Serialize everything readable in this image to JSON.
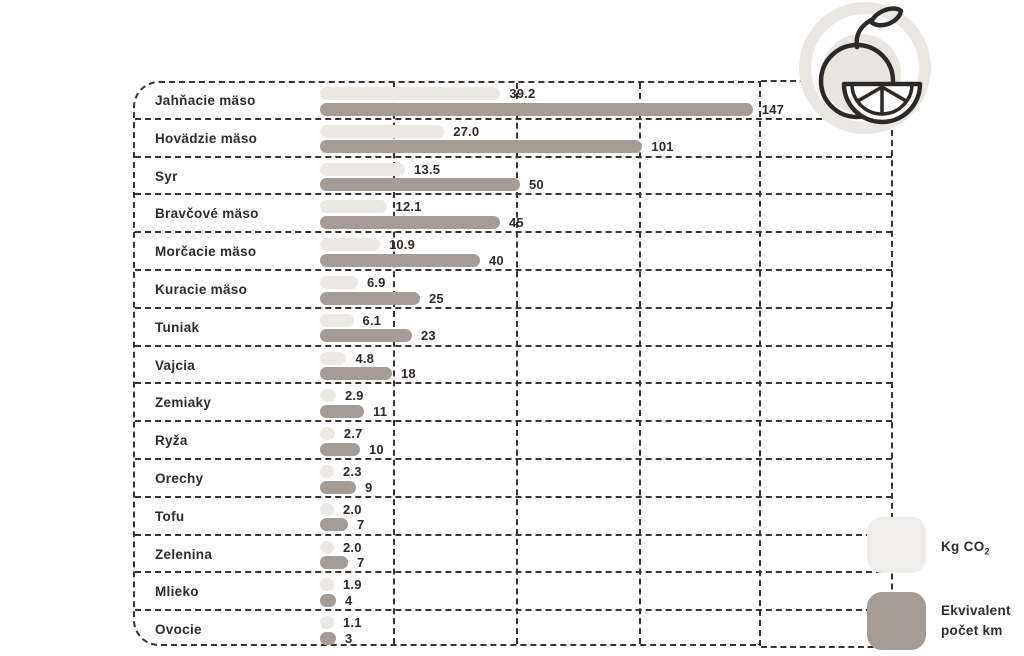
{
  "icon": {
    "name": "orange-fruit-icon"
  },
  "legend": {
    "co2": {
      "label": "Kg CO",
      "subscript": "2",
      "swatch_color": "#EFEDE9"
    },
    "km": {
      "line1": "Ekvivalent",
      "line2": "počet km",
      "swatch_color": "#A59C96"
    }
  },
  "colors": {
    "co2_bar": "#ECE9E5",
    "km_bar": "#A59C96",
    "grid_dash": "#3a3330",
    "text": "#2f2a27"
  },
  "chart_data": {
    "type": "bar",
    "orientation": "horizontal",
    "grid": "dashed",
    "legend_position": "bottom-right",
    "categories": [
      "Jahňacie mäso",
      "Hovädzie mäso",
      "Syr",
      "Bravčové mäso",
      "Morčacie mäso",
      "Kuracie mäso",
      "Tuniak",
      "Vajcia",
      "Zemiaky",
      "Ryža",
      "Orechy",
      "Tofu",
      "Zelenina",
      "Mlieko",
      "Ovocie"
    ],
    "series": [
      {
        "name": "Kg CO2",
        "values": [
          39.2,
          27.0,
          13.5,
          12.1,
          10.9,
          6.9,
          6.1,
          4.8,
          2.9,
          2.7,
          2.3,
          2.0,
          2.0,
          1.9,
          1.1
        ],
        "value_labels": [
          "39.2",
          "27.0",
          "13.5",
          "12.1",
          "10.9",
          "6.9",
          "6.1",
          "4.8",
          "2.9",
          "2.7",
          "2.3",
          "2.0",
          "2.0",
          "1.9",
          "1.1"
        ]
      },
      {
        "name": "Ekvivalent počet km",
        "values": [
          147,
          101,
          50,
          45,
          40,
          25,
          23,
          18,
          11,
          10,
          9,
          7,
          7,
          4,
          3
        ],
        "value_labels": [
          "147",
          "101",
          "50",
          "45",
          "40",
          "25",
          "23",
          "18",
          "11",
          "10",
          "9",
          "7",
          "7",
          "4",
          "3"
        ]
      }
    ]
  }
}
